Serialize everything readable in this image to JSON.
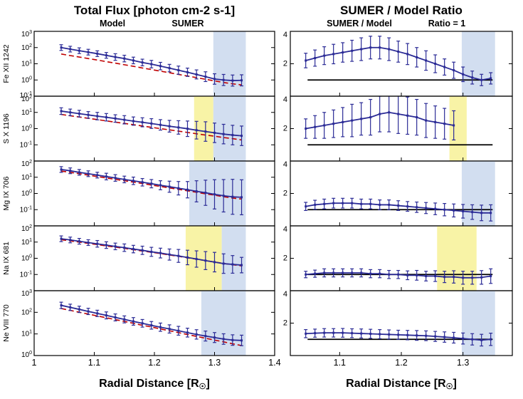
{
  "figure": {
    "left_title": "Total Flux [photon cm-2 s-1]",
    "right_title": "SUMER / Model Ratio",
    "legend": {
      "model": "Model",
      "sumer": "SUMER",
      "ratio": "SUMER / Model",
      "unity": "Ratio = 1"
    },
    "xlabel": "Radial Distance [R☉]",
    "colors": {
      "sumer_blue": "#2b2b96",
      "model_red": "#c00000",
      "band_blue": "#d2def0",
      "band_yellow": "#f8f3a6",
      "line_black": "#000000"
    }
  },
  "chart_data": {
    "type": "line",
    "x": [
      1.045,
      1.06,
      1.075,
      1.09,
      1.105,
      1.12,
      1.135,
      1.15,
      1.165,
      1.18,
      1.195,
      1.21,
      1.225,
      1.24,
      1.255,
      1.27,
      1.285,
      1.3,
      1.315,
      1.33,
      1.345
    ],
    "xlim_left": [
      1.0,
      1.4
    ],
    "xlim_right": [
      1.02,
      1.38
    ],
    "xticks_left": [
      1,
      1.1,
      1.2,
      1.3,
      1.4
    ],
    "xtick_labels_left": [
      "1",
      "1.1",
      "1.2",
      "1.3",
      "1.4"
    ],
    "xticks_right": [
      1.1,
      1.2,
      1.3
    ],
    "xtick_labels_right": [
      "1.1",
      "1.2",
      "1.3"
    ],
    "rows": [
      {
        "label": "Fe XII 1242",
        "flux": {
          "ylim_log": [
            -1,
            3
          ],
          "yticks_exp": [
            3,
            2,
            1,
            0,
            -1
          ],
          "sumer": [
            100,
            80,
            64,
            52,
            42,
            33,
            26,
            21,
            16,
            12,
            9.5,
            7.2,
            5.4,
            4.0,
            3.0,
            2.2,
            1.6,
            1.15,
            1.0,
            0.92,
            0.95
          ],
          "model": [
            40,
            32,
            26,
            21,
            17,
            13.5,
            11,
            8.7,
            7.0,
            5.5,
            4.4,
            3.5,
            2.8,
            2.2,
            1.75,
            1.4,
            1.1,
            0.88,
            0.7,
            0.58,
            0.5
          ],
          "err_factor": [
            1.5,
            1.5,
            1.5,
            1.5,
            1.5,
            1.5,
            1.6,
            1.6,
            1.6,
            1.6,
            1.7,
            1.7,
            1.7,
            1.8,
            1.8,
            1.9,
            2.0,
            2.1,
            2.2,
            2.2,
            2.2
          ],
          "bands": [
            {
              "color": "blue",
              "x0": 1.298,
              "x1": 1.352
            }
          ]
        },
        "ratio": {
          "ylim": [
            0,
            4
          ],
          "yticks": [
            2,
            4
          ],
          "values": [
            2.2,
            2.35,
            2.5,
            2.6,
            2.7,
            2.8,
            2.9,
            3.0,
            3.0,
            2.9,
            2.75,
            2.6,
            2.4,
            2.2,
            2.0,
            1.8,
            1.6,
            1.35,
            1.15,
            1.0,
            1.1
          ],
          "err": [
            0.45,
            0.5,
            0.55,
            0.6,
            0.6,
            0.65,
            0.7,
            0.7,
            0.7,
            0.7,
            0.65,
            0.65,
            0.6,
            0.6,
            0.55,
            0.5,
            0.5,
            0.45,
            0.4,
            0.35,
            0.35
          ],
          "unity_line": [
            1.048,
            1.348
          ],
          "bands": [
            {
              "color": "blue",
              "x0": 1.298,
              "x1": 1.352
            }
          ]
        }
      },
      {
        "label": "S X 1196",
        "flux": {
          "ylim_log": [
            -2,
            2
          ],
          "yticks_exp": [
            2,
            1,
            0,
            -1
          ],
          "sumer": [
            12,
            10,
            8.4,
            7.0,
            5.9,
            5.0,
            4.2,
            3.5,
            2.9,
            2.45,
            2.05,
            1.7,
            1.4,
            1.18,
            0.98,
            0.8,
            0.66,
            0.55,
            0.46,
            0.4,
            0.36
          ],
          "model": [
            7.5,
            6.2,
            5.2,
            4.3,
            3.6,
            3.0,
            2.5,
            2.1,
            1.75,
            1.45,
            1.2,
            1.0,
            0.84,
            0.7,
            0.58,
            0.48,
            0.4,
            0.34,
            0.28,
            0.24,
            0.2
          ],
          "err_factor": [
            1.6,
            1.6,
            1.6,
            1.6,
            1.7,
            1.7,
            1.7,
            1.8,
            1.8,
            1.9,
            2.0,
            2.1,
            2.3,
            2.6,
            3.0,
            3.5,
            4.0,
            4.0,
            4.0,
            4.0,
            4.0
          ],
          "bands": [
            {
              "color": "yellow",
              "x0": 1.266,
              "x1": 1.298
            },
            {
              "color": "blue",
              "x0": 1.298,
              "x1": 1.352
            }
          ]
        },
        "ratio": {
          "ylim": [
            0,
            4
          ],
          "yticks": [
            2,
            4
          ],
          "values": [
            2.0,
            2.1,
            2.2,
            2.3,
            2.4,
            2.5,
            2.6,
            2.7,
            2.9,
            3.0,
            2.9,
            2.8,
            2.7,
            2.5,
            2.4,
            2.3,
            2.2,
            null,
            null,
            null,
            null
          ],
          "err": [
            0.6,
            0.7,
            0.8,
            0.85,
            0.9,
            1.0,
            1.0,
            1.1,
            1.1,
            1.2,
            1.2,
            1.15,
            1.1,
            1.05,
            1.0,
            0.95,
            0.9,
            null,
            null,
            null,
            null
          ],
          "unity_line": [
            1.048,
            1.348
          ],
          "bands": [
            {
              "color": "yellow",
              "x0": 1.278,
              "x1": 1.306
            }
          ]
        }
      },
      {
        "label": "Mg IX 706",
        "flux": {
          "ylim_log": [
            -2,
            2
          ],
          "yticks_exp": [
            2,
            1,
            0,
            -1
          ],
          "sumer": [
            30,
            25,
            20,
            16.5,
            13.5,
            11,
            9,
            7.3,
            6,
            4.9,
            4.0,
            3.2,
            2.6,
            2.1,
            1.7,
            1.35,
            1.1,
            0.88,
            0.72,
            0.62,
            0.58
          ],
          "model": [
            24,
            20,
            16.5,
            13.5,
            11,
            9,
            7.4,
            6.1,
            5.0,
            4.1,
            3.3,
            2.7,
            2.2,
            1.8,
            1.45,
            1.18,
            0.95,
            0.78,
            0.63,
            0.52,
            0.45
          ],
          "err_factor": [
            1.5,
            1.5,
            1.5,
            1.5,
            1.5,
            1.6,
            1.6,
            1.6,
            1.7,
            1.7,
            1.8,
            1.9,
            2.2,
            2.6,
            3.2,
            4.5,
            6,
            8,
            10,
            12,
            12
          ],
          "bands": [
            {
              "color": "blue",
              "x0": 1.258,
              "x1": 1.352
            }
          ]
        },
        "ratio": {
          "ylim": [
            0,
            4
          ],
          "yticks": [
            2,
            4
          ],
          "values": [
            1.2,
            1.3,
            1.35,
            1.4,
            1.4,
            1.4,
            1.35,
            1.35,
            1.3,
            1.3,
            1.25,
            1.2,
            1.15,
            1.1,
            1.05,
            1.0,
            0.95,
            0.9,
            0.85,
            0.8,
            0.8
          ],
          "err": [
            0.25,
            0.28,
            0.3,
            0.3,
            0.3,
            0.3,
            0.3,
            0.3,
            0.3,
            0.3,
            0.3,
            0.3,
            0.32,
            0.34,
            0.36,
            0.38,
            0.4,
            0.42,
            0.45,
            0.48,
            0.5
          ],
          "unity_line": [
            1.048,
            1.348
          ],
          "bands": [
            {
              "color": "blue",
              "x0": 1.298,
              "x1": 1.352
            }
          ]
        }
      },
      {
        "label": "Na IX 681",
        "flux": {
          "ylim_log": [
            -2,
            2
          ],
          "yticks_exp": [
            2,
            1,
            0,
            -1
          ],
          "sumer": [
            16,
            13.5,
            11.2,
            9.3,
            7.8,
            6.5,
            5.4,
            4.5,
            3.7,
            3.1,
            2.5,
            2.1,
            1.7,
            1.4,
            1.12,
            0.9,
            0.72,
            0.58,
            0.47,
            0.42,
            0.38
          ],
          "model": [
            14,
            11.8,
            9.9,
            8.3,
            7.0,
            5.8,
            4.9,
            4.1,
            3.4,
            2.8,
            2.35,
            1.95,
            1.6,
            1.32,
            1.08,
            0.88,
            0.72,
            0.59,
            0.48,
            0.4,
            0.34
          ],
          "err_factor": [
            1.5,
            1.5,
            1.5,
            1.5,
            1.6,
            1.6,
            1.6,
            1.7,
            1.7,
            1.8,
            1.9,
            2.0,
            2.2,
            2.5,
            2.8,
            3.2,
            3.6,
            4.0,
            4.0,
            3.5,
            3.0
          ],
          "bands": [
            {
              "color": "yellow",
              "x0": 1.252,
              "x1": 1.312
            },
            {
              "color": "blue",
              "x0": 1.312,
              "x1": 1.352
            }
          ]
        },
        "ratio": {
          "ylim": [
            0,
            4
          ],
          "yticks": [
            2,
            4
          ],
          "values": [
            1.0,
            1.05,
            1.1,
            1.1,
            1.1,
            1.1,
            1.1,
            1.05,
            1.05,
            1.0,
            1.0,
            0.95,
            0.95,
            0.9,
            0.9,
            0.85,
            0.85,
            0.8,
            0.8,
            0.82,
            0.9
          ],
          "err": [
            0.2,
            0.22,
            0.25,
            0.25,
            0.25,
            0.25,
            0.25,
            0.25,
            0.25,
            0.25,
            0.25,
            0.27,
            0.3,
            0.3,
            0.33,
            0.35,
            0.38,
            0.4,
            0.4,
            0.42,
            0.45
          ],
          "unity_line": [
            1.048,
            1.348
          ],
          "bands": [
            {
              "color": "yellow",
              "x0": 1.258,
              "x1": 1.322
            }
          ]
        }
      },
      {
        "label": "Ne VIII 770",
        "flux": {
          "ylim_log": [
            0,
            3
          ],
          "yticks_exp": [
            3,
            2,
            1,
            0
          ],
          "sumer": [
            210,
            170,
            137,
            110,
            89,
            72,
            58,
            47,
            38,
            31,
            25,
            20.5,
            17,
            14,
            11.5,
            9.5,
            8.0,
            6.8,
            5.8,
            5.2,
            5.0
          ],
          "model": [
            150,
            123,
            101,
            83,
            68,
            56,
            46,
            38,
            31,
            25,
            21,
            17,
            14,
            11.5,
            9.4,
            7.7,
            6.3,
            5.2,
            4.3,
            3.5,
            2.9
          ],
          "err_factor": [
            1.4,
            1.4,
            1.4,
            1.4,
            1.4,
            1.45,
            1.45,
            1.45,
            1.5,
            1.5,
            1.5,
            1.55,
            1.55,
            1.6,
            1.6,
            1.65,
            1.7,
            1.7,
            1.75,
            1.75,
            1.75
          ],
          "bands": [
            {
              "color": "blue",
              "x0": 1.278,
              "x1": 1.352
            }
          ]
        },
        "ratio": {
          "ylim": [
            0,
            4
          ],
          "yticks": [
            2,
            4
          ],
          "values": [
            1.35,
            1.38,
            1.4,
            1.4,
            1.4,
            1.38,
            1.36,
            1.34,
            1.32,
            1.3,
            1.28,
            1.26,
            1.24,
            1.22,
            1.18,
            1.14,
            1.1,
            1.05,
            1.0,
            0.95,
            1.0
          ],
          "err": [
            0.25,
            0.25,
            0.26,
            0.26,
            0.27,
            0.27,
            0.28,
            0.28,
            0.28,
            0.28,
            0.28,
            0.29,
            0.3,
            0.3,
            0.31,
            0.32,
            0.33,
            0.34,
            0.35,
            0.36,
            0.38
          ],
          "unity_line": [
            1.048,
            1.348
          ],
          "bands": [
            {
              "color": "blue",
              "x0": 1.298,
              "x1": 1.352
            }
          ]
        }
      }
    ]
  }
}
